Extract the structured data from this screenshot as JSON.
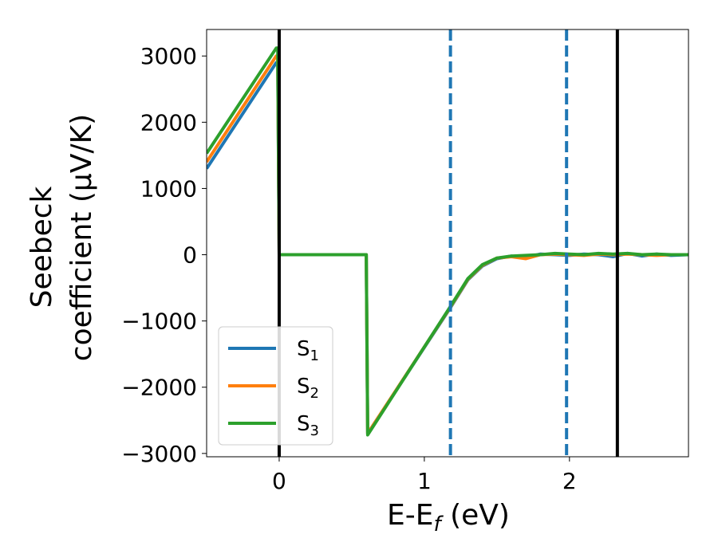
{
  "chart_data": {
    "type": "line",
    "xlabel": "E-E",
    "xlabel_sub": "f",
    "xlabel_unit": " (eV)",
    "ylabel_line1": "Seebeck",
    "ylabel_line2": "coefficient  (μV/K)",
    "xlim": [
      -0.5,
      2.82
    ],
    "ylim": [
      -3050,
      3400
    ],
    "xticks": [
      0,
      1,
      2
    ],
    "yticks": [
      -3000,
      -2000,
      -1000,
      0,
      1000,
      2000,
      3000
    ],
    "xtick_labels": [
      "0",
      "1",
      "2"
    ],
    "ytick_labels": [
      "−3000",
      "−2000",
      "−1000",
      "0",
      "1000",
      "2000",
      "3000"
    ],
    "grid": false,
    "legend_position": "lower-left",
    "vlines": [
      {
        "x": 0.0,
        "style": "solid",
        "color": "#000000"
      },
      {
        "x": 1.18,
        "style": "dashed",
        "color": "#1f77b4"
      },
      {
        "x": 1.98,
        "style": "dashed",
        "color": "#1f77b4"
      },
      {
        "x": 2.33,
        "style": "solid",
        "color": "#000000"
      }
    ],
    "series": [
      {
        "name": "S",
        "sub": "1",
        "color": "#1f77b4",
        "points": [
          [
            -0.5,
            1300
          ],
          [
            -0.02,
            2900
          ],
          [
            -0.01,
            2900
          ],
          [
            0,
            0
          ],
          [
            0.6,
            0
          ],
          [
            0.61,
            -2700
          ],
          [
            1.18,
            -800
          ],
          [
            1.3,
            -380
          ],
          [
            1.4,
            -170
          ],
          [
            1.5,
            -60
          ],
          [
            1.6,
            -20
          ],
          [
            1.7,
            -40
          ],
          [
            1.8,
            10
          ],
          [
            1.9,
            0
          ],
          [
            2.0,
            -10
          ],
          [
            2.1,
            10
          ],
          [
            2.2,
            0
          ],
          [
            2.3,
            -30
          ],
          [
            2.4,
            20
          ],
          [
            2.5,
            -20
          ],
          [
            2.6,
            10
          ],
          [
            2.7,
            -10
          ],
          [
            2.82,
            0
          ]
        ]
      },
      {
        "name": "S",
        "sub": "2",
        "color": "#ff7f0e",
        "points": [
          [
            -0.5,
            1400
          ],
          [
            -0.02,
            3000
          ],
          [
            -0.01,
            3000
          ],
          [
            0,
            0
          ],
          [
            0.6,
            0
          ],
          [
            0.61,
            -2700
          ],
          [
            1.18,
            -790
          ],
          [
            1.3,
            -370
          ],
          [
            1.4,
            -160
          ],
          [
            1.5,
            -50
          ],
          [
            1.6,
            -30
          ],
          [
            1.7,
            -60
          ],
          [
            1.8,
            0
          ],
          [
            1.9,
            10
          ],
          [
            2.0,
            0
          ],
          [
            2.1,
            -10
          ],
          [
            2.2,
            10
          ],
          [
            2.3,
            0
          ],
          [
            2.4,
            10
          ],
          [
            2.5,
            0
          ],
          [
            2.6,
            -10
          ],
          [
            2.7,
            0
          ],
          [
            2.82,
            0
          ]
        ]
      },
      {
        "name": "S",
        "sub": "3",
        "color": "#2ca02c",
        "points": [
          [
            -0.5,
            1530
          ],
          [
            -0.02,
            3120
          ],
          [
            -0.01,
            3120
          ],
          [
            0,
            0
          ],
          [
            0.6,
            0
          ],
          [
            0.61,
            -2720
          ],
          [
            1.18,
            -780
          ],
          [
            1.3,
            -360
          ],
          [
            1.4,
            -150
          ],
          [
            1.5,
            -50
          ],
          [
            1.6,
            -20
          ],
          [
            1.7,
            -10
          ],
          [
            1.8,
            0
          ],
          [
            1.9,
            20
          ],
          [
            2.0,
            10
          ],
          [
            2.1,
            0
          ],
          [
            2.2,
            20
          ],
          [
            2.3,
            10
          ],
          [
            2.4,
            20
          ],
          [
            2.5,
            0
          ],
          [
            2.6,
            10
          ],
          [
            2.7,
            0
          ],
          [
            2.82,
            0
          ]
        ]
      }
    ]
  }
}
